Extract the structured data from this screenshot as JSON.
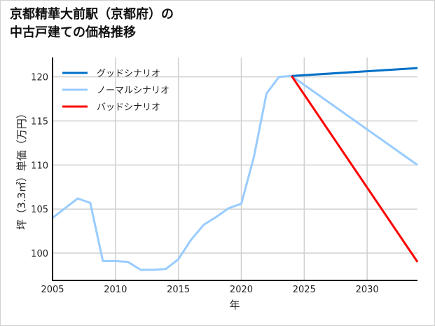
{
  "chart_data": {
    "type": "line",
    "title": [
      "京都精華大前駅（京都府）の",
      "中古戸建ての価格推移"
    ],
    "xlabel": "年",
    "ylabel": "坪（3.3㎡）単価（万円）",
    "xlim": [
      2005,
      2034
    ],
    "ylim": [
      96.9,
      122.2
    ],
    "xticks": [
      2005,
      2010,
      2015,
      2020,
      2025,
      2030
    ],
    "yticks": [
      100,
      105,
      110,
      115,
      120
    ],
    "grid": true,
    "legend_position": "top-left",
    "series": [
      {
        "name": "グッドシナリオ",
        "color": "#0070c8",
        "x": [
          2024,
          2034
        ],
        "values": [
          120.1,
          121.0
        ]
      },
      {
        "name": "ノーマルシナリオ",
        "color": "#99ccff",
        "x": [
          2005,
          2006,
          2007,
          2008,
          2009,
          2010,
          2011,
          2012,
          2013,
          2014,
          2015,
          2016,
          2017,
          2018,
          2019,
          2020,
          2021,
          2022,
          2023,
          2024,
          2034
        ],
        "values": [
          104.0,
          105.1,
          106.2,
          105.7,
          99.1,
          99.1,
          99.0,
          98.1,
          98.1,
          98.2,
          99.3,
          101.5,
          103.2,
          104.1,
          105.1,
          105.6,
          110.9,
          118.1,
          120.0,
          120.1,
          110.0
        ]
      },
      {
        "name": "バッドシナリオ",
        "color": "#ff0000",
        "x": [
          2024,
          2034
        ],
        "values": [
          120.1,
          99.0
        ]
      }
    ]
  }
}
